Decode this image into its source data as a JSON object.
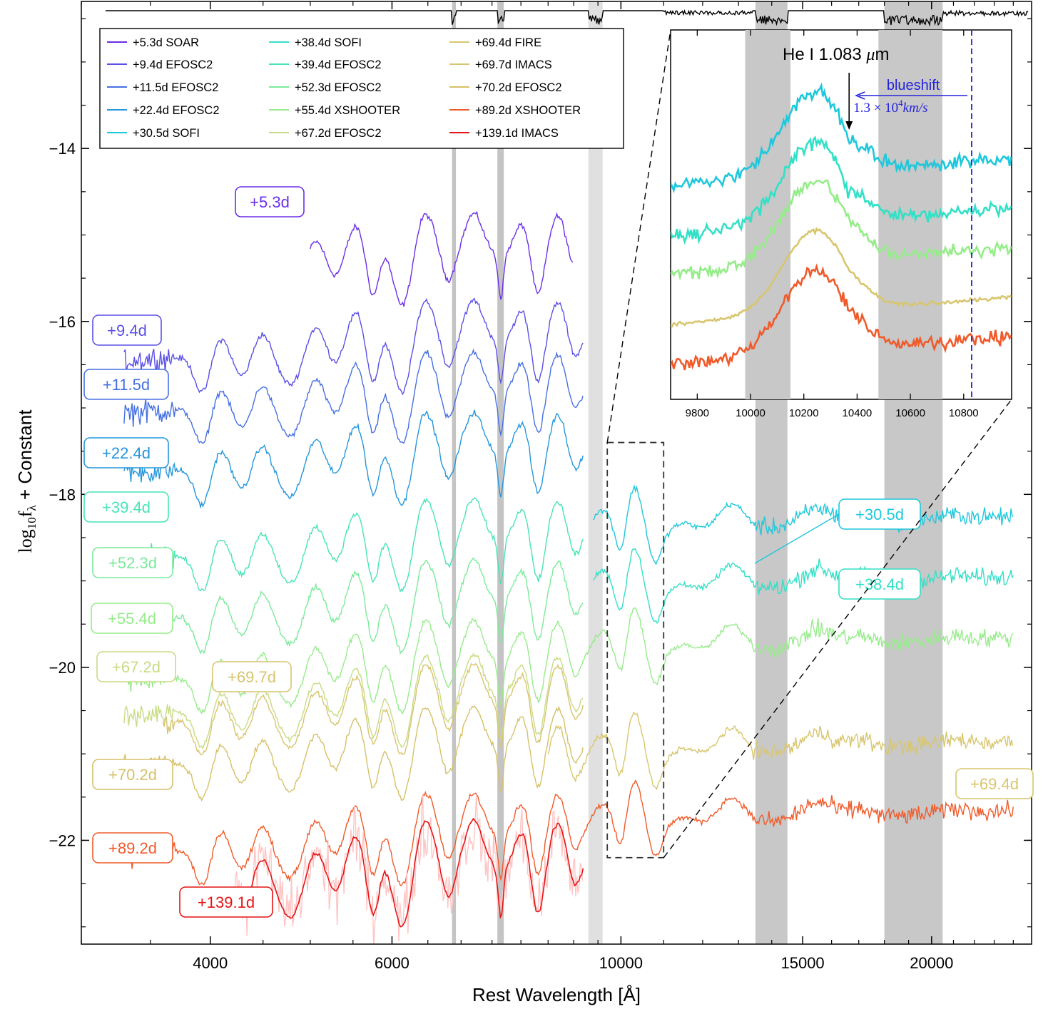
{
  "chart_data": {
    "type": "line",
    "xlabel": "Rest Wavelength [Å]",
    "ylabel": "log10 fλ + Constant",
    "ylabel_parts": {
      "base": "log",
      "sub": "10",
      "f": "f",
      "fsub": "λ",
      "rest": " + Constant"
    },
    "xscale": "log",
    "xlim": [
      3000,
      25000
    ],
    "ylim": [
      -23.2,
      -12.3
    ],
    "x_ticks": [
      4000,
      6000,
      10000,
      15000,
      20000
    ],
    "y_ticks": [
      -14,
      -16,
      -18,
      -20,
      -22
    ],
    "telluric_bands": [
      {
        "x": [
          6860,
          6920
        ],
        "shade": "#c4c4c4"
      },
      {
        "x": [
          7590,
          7700
        ],
        "shade": "#c4c4c4"
      },
      {
        "x": [
          9300,
          9600
        ],
        "shade": "#e0e0e0"
      },
      {
        "x": [
          13500,
          14500
        ],
        "shade": "#c8c8c8"
      },
      {
        "x": [
          18000,
          20500
        ],
        "shade": "#c8c8c8"
      }
    ],
    "series": [
      {
        "name": "+5.3d SOAR",
        "color": "#6a2ee8",
        "x_range": [
          5000,
          9000
        ],
        "offset": -15.3
      },
      {
        "name": "+9.4d EFOSC2",
        "color": "#5a50e6",
        "x_range": [
          3300,
          9200
        ],
        "offset": -16.3
      },
      {
        "name": "+11.5d EFOSC2",
        "color": "#4670e2",
        "x_range": [
          3300,
          9200
        ],
        "offset": -16.9
      },
      {
        "name": "+22.4d EFOSC2",
        "color": "#2496dc",
        "x_range": [
          3300,
          9200
        ],
        "offset": -17.6
      },
      {
        "name": "+30.5d SOFI",
        "color": "#1ec8dc",
        "x_range": [
          9400,
          24000
        ],
        "offset": -18.6
      },
      {
        "name": "+38.4d SOFI",
        "color": "#32e0c6",
        "x_range": [
          9400,
          24000
        ],
        "offset": -19.3
      },
      {
        "name": "+39.4d EFOSC2",
        "color": "#46e4b8",
        "x_range": [
          3300,
          9200
        ],
        "offset": -18.6
      },
      {
        "name": "+52.3d EFOSC2",
        "color": "#7aea9a",
        "x_range": [
          3300,
          9200
        ],
        "offset": -19.3
      },
      {
        "name": "+55.4d XSHOOTER",
        "color": "#96ec8a",
        "x_range": [
          3300,
          24000
        ],
        "offset": -20.0
      },
      {
        "name": "+67.2d EFOSC2",
        "color": "#c8dc84",
        "x_range": [
          3300,
          9200
        ],
        "offset": -20.4
      },
      {
        "name": "+69.4d FIRE",
        "color": "#d8c66e",
        "x_range": [
          8500,
          24000
        ],
        "offset": -21.2
      },
      {
        "name": "+69.7d IMACS",
        "color": "#d8c46e",
        "x_range": [
          3600,
          9200
        ],
        "offset": -20.5
      },
      {
        "name": "+70.2d EFOSC2",
        "color": "#d6c068",
        "x_range": [
          3300,
          9200
        ],
        "offset": -21.0
      },
      {
        "name": "+89.2d XSHOOTER",
        "color": "#f05a2a",
        "x_range": [
          3300,
          24000
        ],
        "offset": -22.0
      },
      {
        "name": "+139.1d IMACS",
        "color": "#ffc4c4",
        "mean_color": "#e61414",
        "x_range": [
          4200,
          9200
        ],
        "offset": -22.4
      }
    ],
    "legend": {
      "placement": "top-left",
      "columns": 3
    },
    "phase_labels": [
      {
        "text": "+5.3d",
        "color": "#6a2ee8"
      },
      {
        "text": "+9.4d",
        "color": "#5a50e6"
      },
      {
        "text": "+11.5d",
        "color": "#4670e2"
      },
      {
        "text": "+22.4d",
        "color": "#2496dc"
      },
      {
        "text": "+39.4d",
        "color": "#46e4b8"
      },
      {
        "text": "+52.3d",
        "color": "#7aea9a"
      },
      {
        "text": "+55.4d",
        "color": "#96ec8a"
      },
      {
        "text": "+67.2d",
        "color": "#c8dc84"
      },
      {
        "text": "+69.7d",
        "color": "#d8c46e"
      },
      {
        "text": "+70.2d",
        "color": "#d6c068"
      },
      {
        "text": "+89.2d",
        "color": "#f05a2a"
      },
      {
        "text": "+139.1d",
        "color": "#e61414"
      },
      {
        "text": "+30.5d",
        "color": "#1ec8dc"
      },
      {
        "text": "+38.4d",
        "color": "#32e0c6"
      },
      {
        "text": "+69.4d",
        "color": "#d8c66e"
      }
    ],
    "zoom_box": {
      "x": [
        9700,
        11000
      ],
      "y": [
        -22.2,
        -17.4
      ]
    },
    "inset": {
      "title": "He I 1.083 μm",
      "title_parts": {
        "main": "He I 1.083 ",
        "mu": "μ",
        "m": "m"
      },
      "xlim": [
        9700,
        10980
      ],
      "x_ticks": [
        9800,
        10000,
        10200,
        10400,
        10600,
        10800
      ],
      "bands": [
        [
          9980,
          10150
        ],
        [
          10480,
          10720
        ]
      ],
      "blueshift_label": "blueshift",
      "velocity_label": "1.3 × 10⁴km/s",
      "velocity_parts": {
        "mant": "1.3 × 10",
        "exp": "4",
        "unit": "km/s"
      },
      "line_marker_wavelength": 10830,
      "absorption_arrow_wavelength": 10370,
      "inset_series": [
        {
          "name": "+30.5d SOFI",
          "color": "#1ec8dc"
        },
        {
          "name": "+38.4d SOFI",
          "color": "#32e0c6"
        },
        {
          "name": "+55.4d XSHOOTER",
          "color": "#96ec8a"
        },
        {
          "name": "+69.4d FIRE",
          "color": "#d8c66e"
        },
        {
          "name": "+89.2d XSHOOTER",
          "color": "#f05a2a"
        }
      ]
    }
  }
}
